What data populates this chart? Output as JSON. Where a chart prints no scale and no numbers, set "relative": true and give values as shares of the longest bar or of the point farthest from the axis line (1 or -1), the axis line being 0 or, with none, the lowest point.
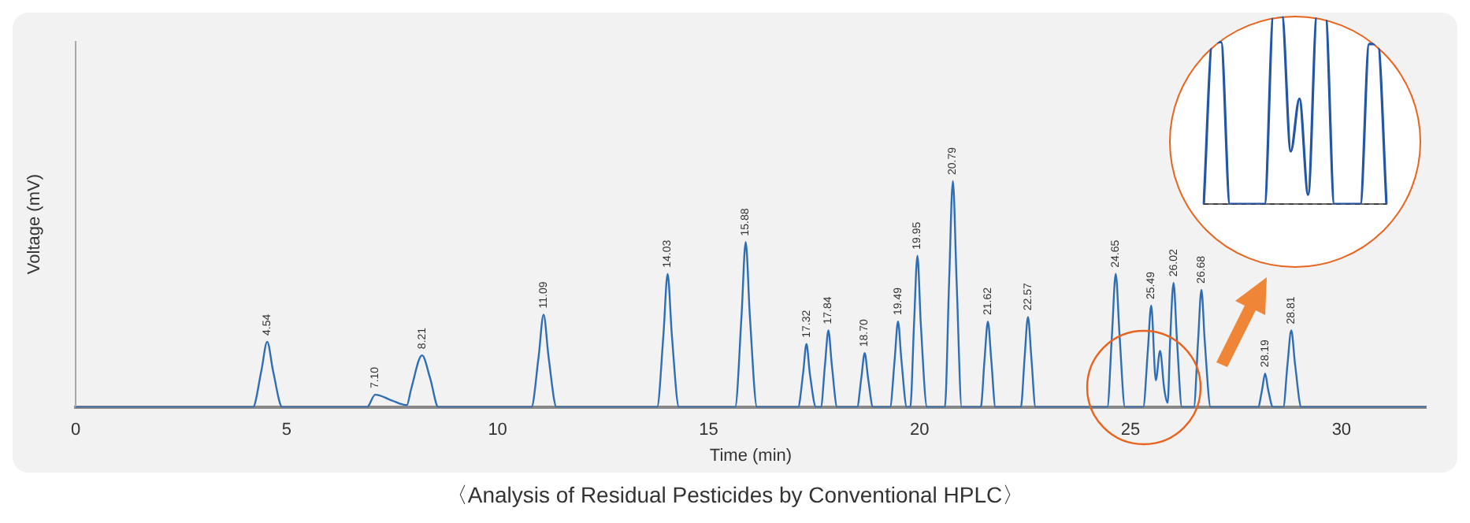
{
  "chart_data": [
    {
      "type": "line",
      "relative": true,
      "xlabel": "Time (min)",
      "ylabel": "Voltage (mV)",
      "xlim": [
        0,
        32
      ],
      "xticks": [
        0,
        5,
        10,
        15,
        20,
        25,
        30
      ],
      "grid": false,
      "legend": false,
      "marker": "none",
      "line_style": "solid",
      "series": [
        {
          "color": "#2f6db5",
          "x": [
            0,
            4.2,
            4.4,
            4.54,
            4.68,
            4.9,
            6.9,
            7.1,
            7.5,
            7.85,
            7.95,
            8.21,
            8.4,
            8.6,
            10.8,
            10.97,
            11.09,
            11.21,
            11.4,
            13.78,
            13.93,
            14.03,
            14.13,
            14.3,
            15.63,
            15.78,
            15.88,
            15.98,
            16.15,
            17.12,
            17.24,
            17.32,
            17.4,
            17.55,
            17.66,
            17.76,
            17.84,
            17.92,
            18.05,
            18.52,
            18.62,
            18.7,
            18.78,
            18.9,
            19.3,
            19.41,
            19.49,
            19.57,
            19.7,
            19.78,
            19.87,
            19.95,
            20.03,
            20.18,
            20.6,
            20.7,
            20.79,
            20.88,
            21.0,
            21.45,
            21.54,
            21.62,
            21.7,
            21.8,
            22.4,
            22.49,
            22.57,
            22.65,
            22.75,
            24.45,
            24.56,
            24.65,
            24.74,
            24.87,
            25.3,
            25.41,
            25.49,
            25.6,
            25.7,
            25.8,
            25.88,
            25.94,
            26.02,
            26.1,
            26.22,
            26.5,
            26.6,
            26.68,
            26.76,
            26.9,
            28.02,
            28.12,
            28.19,
            28.26,
            28.38,
            28.62,
            28.72,
            28.81,
            28.9,
            29.05,
            32
          ],
          "values": [
            0,
            0,
            0.16,
            0.29,
            0.16,
            0,
            0,
            0.056,
            0.03,
            0.01,
            0.08,
            0.23,
            0.13,
            0,
            0,
            0.22,
            0.41,
            0.22,
            0,
            0,
            0.32,
            0.59,
            0.32,
            0,
            0,
            0.4,
            0.73,
            0.4,
            0,
            0,
            0.15,
            0.28,
            0.15,
            0,
            0,
            0.19,
            0.34,
            0.19,
            0,
            0,
            0.13,
            0.24,
            0.13,
            0,
            0,
            0.21,
            0.38,
            0.21,
            0,
            0,
            0.37,
            0.67,
            0.37,
            0,
            0,
            0.55,
            1,
            0.55,
            0,
            0,
            0.21,
            0.38,
            0.21,
            0,
            0,
            0.22,
            0.4,
            0.22,
            0,
            0,
            0.32,
            0.59,
            0.32,
            0,
            0,
            0.25,
            0.45,
            0.12,
            0.25,
            0.08,
            0.02,
            0.3,
            0.55,
            0.3,
            0,
            0,
            0.29,
            0.52,
            0.29,
            0,
            0,
            0.08,
            0.15,
            0.08,
            0,
            0,
            0.19,
            0.34,
            0.19,
            0,
            0
          ]
        }
      ],
      "annotations": [
        {
          "text": "4.54",
          "x": 4.54,
          "y": 0.29
        },
        {
          "text": "7.10",
          "x": 7.1,
          "y": 0.056
        },
        {
          "text": "8.21",
          "x": 8.21,
          "y": 0.23
        },
        {
          "text": "11.09",
          "x": 11.09,
          "y": 0.41
        },
        {
          "text": "14.03",
          "x": 14.03,
          "y": 0.59
        },
        {
          "text": "15.88",
          "x": 15.88,
          "y": 0.73
        },
        {
          "text": "17.32",
          "x": 17.32,
          "y": 0.28
        },
        {
          "text": "17.84",
          "x": 17.84,
          "y": 0.34
        },
        {
          "text": "18.70",
          "x": 18.7,
          "y": 0.24
        },
        {
          "text": "19.49",
          "x": 19.49,
          "y": 0.38
        },
        {
          "text": "19.95",
          "x": 19.95,
          "y": 0.67
        },
        {
          "text": "20.79",
          "x": 20.79,
          "y": 1
        },
        {
          "text": "21.62",
          "x": 21.62,
          "y": 0.38
        },
        {
          "text": "22.57",
          "x": 22.57,
          "y": 0.4
        },
        {
          "text": "24.65",
          "x": 24.65,
          "y": 0.59
        },
        {
          "text": "25.49",
          "x": 25.49,
          "y": 0.45
        },
        {
          "text": "26.02",
          "x": 26.02,
          "y": 0.55
        },
        {
          "text": "26.68",
          "x": 26.68,
          "y": 0.52
        },
        {
          "text": "28.19",
          "x": 28.19,
          "y": 0.15
        },
        {
          "text": "28.81",
          "x": 28.81,
          "y": 0.34
        },
        "〈Analysis of Residual Pesticides by Conventional HPLC〉"
      ]
    },
    {
      "type": "line",
      "relative": true,
      "grid": false,
      "legend": false,
      "marker": "none",
      "line_style": "solid",
      "categories": [
        null,
        null,
        null,
        null,
        null,
        null,
        null,
        null,
        null,
        null,
        null,
        null,
        null,
        null,
        null,
        null,
        null,
        null,
        null,
        null,
        null,
        null
      ],
      "series": [
        {
          "color": "#2456a8",
          "values": [
            0,
            0.86,
            0.86,
            0,
            0,
            0,
            0,
            0,
            1,
            1,
            0.28,
            0.56,
            0.05,
            1,
            1,
            0,
            0,
            0,
            0,
            0.85,
            0.85,
            0
          ]
        }
      ],
      "ref_lines": [
        {
          "axis": "y",
          "value": 0,
          "line_style": "dashed",
          "color": "#333333"
        }
      ]
    }
  ]
}
